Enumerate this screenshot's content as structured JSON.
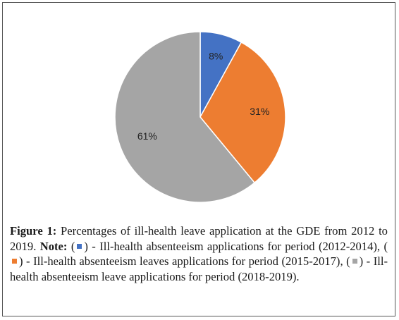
{
  "chart_data": {
    "type": "pie",
    "slices": [
      {
        "label": "8%",
        "value": 8,
        "color": "#4472c4"
      },
      {
        "label": "31%",
        "value": 31,
        "color": "#ed7d31"
      },
      {
        "label": "61%",
        "value": 61,
        "color": "#a5a5a5"
      }
    ],
    "start_angle_deg": 0,
    "direction": "clockwise"
  },
  "caption": {
    "figure_label": "Figure 1:",
    "main_text": " Percentages of ill-health leave application at the GDE from 2012 to 2019. ",
    "note_label": "Note:",
    "open_paren_1": " (",
    "item1_text": ") - Ill-health absenteeism applications for period (2012-2014), (",
    "item2_text": ") - Ill-health absenteeism leaves applications for period (2015-2017), (",
    "item3_text": ") - Ill-health absenteeism leave applications for period (2018-2019).",
    "swatch_colors": [
      "#4472c4",
      "#ed7d31",
      "#a5a5a5"
    ]
  }
}
